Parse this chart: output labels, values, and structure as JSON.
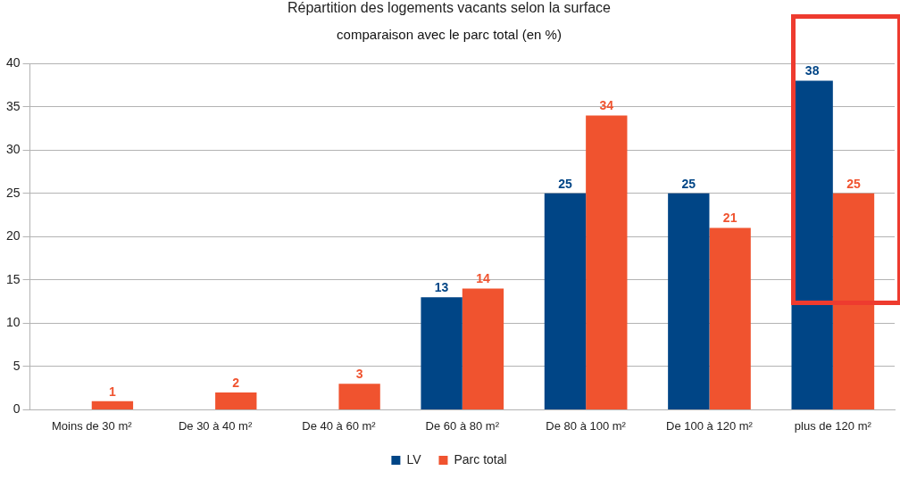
{
  "chart_data": {
    "type": "bar",
    "title": "Répartition des logements vacants selon la surface",
    "subtitle": "comparaison avec le parc total (en %)",
    "categories": [
      "Moins de 30 m²",
      "De 30 à 40 m²",
      "De 40 à 60 m²",
      "De 60 à 80 m²",
      "De 80 à 100 m²",
      "De 100 à 120 m²",
      "plus de 120 m²"
    ],
    "series": [
      {
        "name": "LV",
        "color": "#004586",
        "values": [
          null,
          null,
          null,
          13,
          25,
          25,
          38
        ]
      },
      {
        "name": "Parc total",
        "color": "#f0532f",
        "values": [
          1,
          2,
          3,
          14,
          34,
          21,
          25
        ]
      }
    ],
    "ylim": [
      0,
      40
    ],
    "yticks": [
      0,
      5,
      10,
      15,
      20,
      25,
      30,
      35,
      40
    ],
    "grid": "y",
    "legend": "bottom",
    "data_labels": true
  }
}
